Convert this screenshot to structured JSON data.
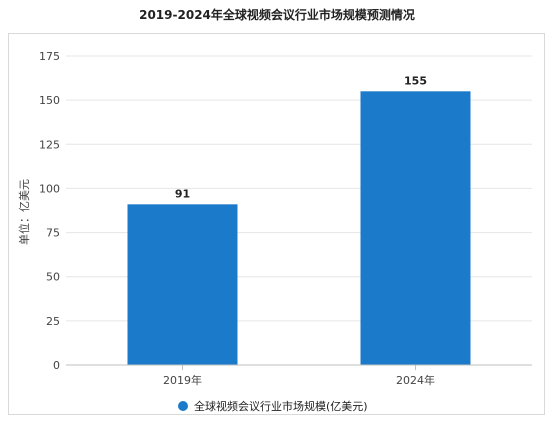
{
  "chart_data": {
    "type": "bar",
    "title": "2019-2024年全球视频会议行业市场规模预测情况",
    "categories": [
      "2019年",
      "2024年"
    ],
    "series": [
      {
        "name": "全球视频会议行业市场规模(亿美元)",
        "values": [
          91,
          155
        ],
        "color": "#1b7ac9"
      }
    ],
    "data_labels": [
      "91",
      "155"
    ],
    "ylabel": "单位：亿美元",
    "xlabel": "",
    "ylim": [
      0,
      175
    ],
    "yticks": [
      0,
      25,
      50,
      75,
      100,
      125,
      150,
      175
    ],
    "grid": "horizontal",
    "legend_position": "bottom"
  }
}
